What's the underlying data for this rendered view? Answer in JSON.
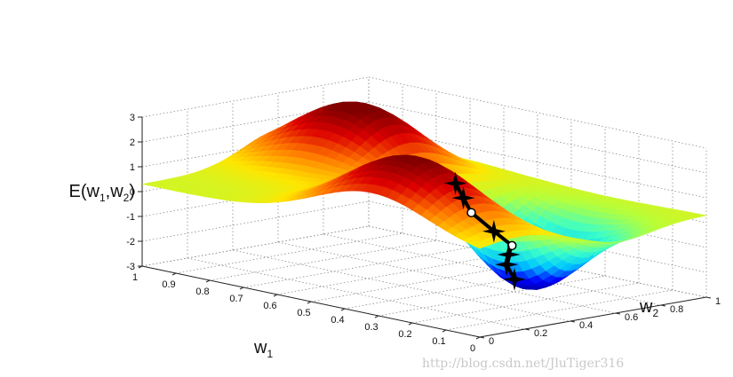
{
  "chart_data": {
    "type": "surface",
    "zlabel": "E(w1,w2)",
    "xlabel": "w1",
    "ylabel": "w2",
    "x_ticks": [
      "1",
      "0.9",
      "0.8",
      "0.7",
      "0.6",
      "0.5",
      "0.4",
      "0.3",
      "0.2",
      "0.1",
      "0"
    ],
    "y_ticks": [
      "0",
      "0.2",
      "0.4",
      "0.6",
      "0.8",
      "1"
    ],
    "z_ticks": [
      "3",
      "2",
      "1",
      "0",
      "-1",
      "-2",
      "-3"
    ],
    "zlim": [
      -3,
      3
    ],
    "grid": true,
    "colormap": [
      "#000080",
      "#0000ff",
      "#00c8ff",
      "#3cffc8",
      "#b4ff3c",
      "#ffe600",
      "#ff7800",
      "#dc0000",
      "#800000"
    ],
    "features": [
      {
        "kind": "peak",
        "w1": 0.32,
        "w2": 0.18,
        "height": 2.8
      },
      {
        "kind": "peak",
        "w1": 0.78,
        "w2": 0.62,
        "height": 2.9
      },
      {
        "kind": "valley",
        "w1": 0.28,
        "w2": 0.62,
        "height": -3.0
      },
      {
        "kind": "plateau",
        "height": 0.3
      }
    ],
    "descent_path": [
      {
        "w1": 0.26,
        "w2": 0.28,
        "E": 2.0
      },
      {
        "w1": 0.27,
        "w2": 0.33,
        "E": 1.3
      },
      {
        "w1": 0.28,
        "w2": 0.38,
        "E": 0.6
      },
      {
        "w1": 0.24,
        "w2": 0.42,
        "E": -0.1
      },
      {
        "w1": 0.22,
        "w2": 0.47,
        "E": -0.7
      },
      {
        "w1": 0.27,
        "w2": 0.53,
        "E": -1.3
      },
      {
        "w1": 0.31,
        "w2": 0.58,
        "E": -1.9
      },
      {
        "w1": 0.32,
        "w2": 0.63,
        "E": -2.6
      }
    ]
  },
  "watermark": "http://blog.csdn.net/JluTiger316"
}
